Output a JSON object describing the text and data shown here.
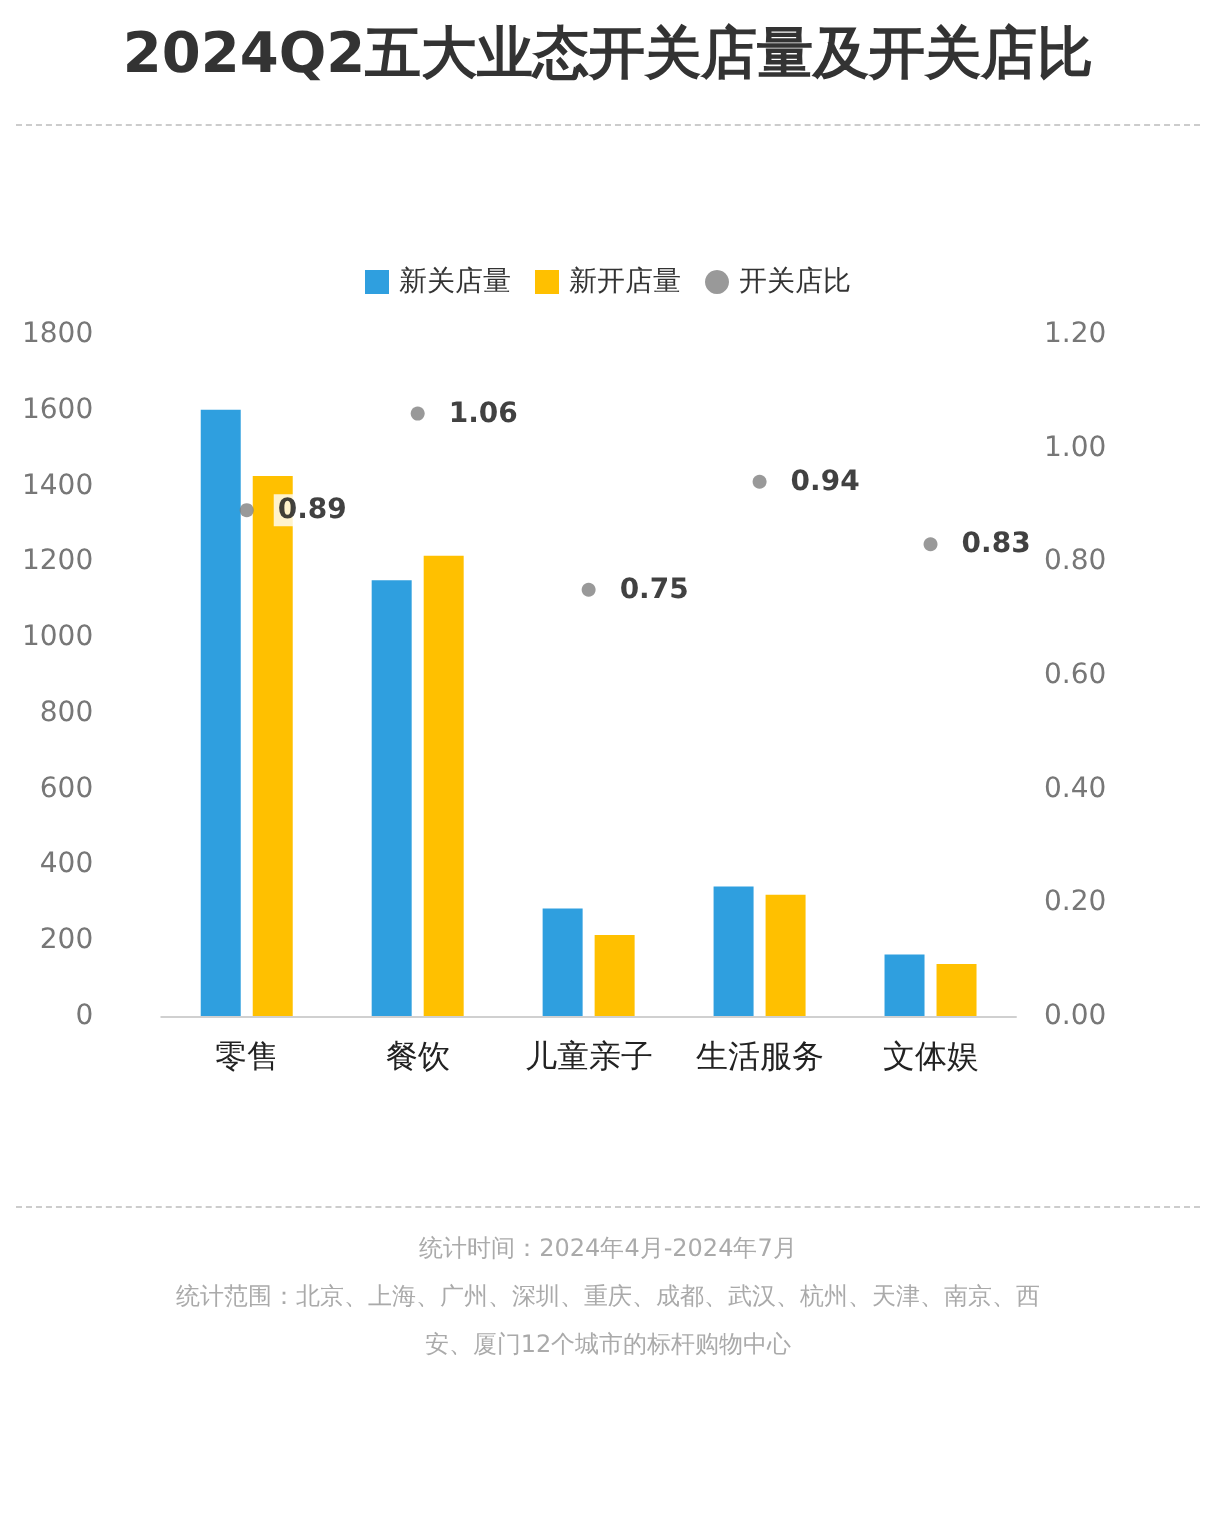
{
  "chart_data": {
    "type": "bar",
    "title": "2024Q2五大业态开关店量及开关店比",
    "categories": [
      "零售",
      "餐饮",
      "儿童亲子",
      "生活服务",
      "文体娱"
    ],
    "series": [
      {
        "name": "新关店量",
        "color": "#2f9fdf",
        "values": [
          1600,
          1150,
          284,
          342,
          162
        ]
      },
      {
        "name": "新开店量",
        "color": "#ffc000",
        "values": [
          1425,
          1215,
          214,
          320,
          137
        ]
      },
      {
        "name": "开关店比",
        "type": "scatter",
        "axis": "y2",
        "color": "#7f7f7f",
        "marker": "circle",
        "data_labels": true,
        "values": [
          0.89,
          1.06,
          0.75,
          0.94,
          0.83
        ]
      }
    ],
    "ylim": [
      0,
      1800
    ],
    "yticks": [
      0,
      200,
      400,
      600,
      800,
      1000,
      1200,
      1400,
      1600,
      1800
    ],
    "y2lim": [
      0,
      1.2
    ],
    "y2ticks": [
      {
        "value": 0,
        "label": "0.00"
      },
      {
        "value": 0.2,
        "label": "0.20"
      },
      {
        "value": 0.4,
        "label": "0.40"
      },
      {
        "value": 0.6,
        "label": "0.60"
      },
      {
        "value": 0.8,
        "label": "0.80"
      },
      {
        "value": 1,
        "label": "1.00"
      },
      {
        "value": 1.2,
        "label": "1.20"
      }
    ],
    "grid": false,
    "legend": "top",
    "annotations": [
      "统计时间：2024年4月-2024年7月",
      "统计范围：北京、上海、广州、深圳、重庆、成都、武汉、杭州、天津、南京、西安、厦门12个城市的标杆购物中心"
    ]
  }
}
